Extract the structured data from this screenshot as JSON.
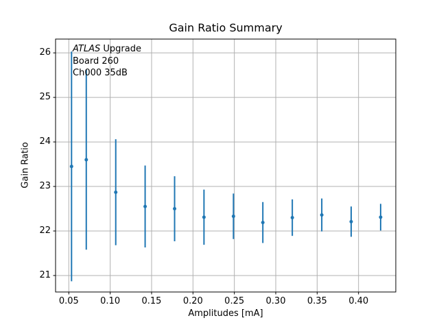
{
  "colors": {
    "series": "#1f77b4",
    "grid": "#b0b0b0",
    "axis": "#000000",
    "text": "#000000",
    "background": "#ffffff"
  },
  "chart_data": {
    "type": "errorbar-scatter",
    "title": "Gain Ratio Summary",
    "xlabel": "Amplitudes [mA]",
    "ylabel": "Gain Ratio",
    "x": [
      0.0533,
      0.0711,
      0.1067,
      0.1422,
      0.1778,
      0.2133,
      0.2489,
      0.2844,
      0.32,
      0.3556,
      0.3911,
      0.4267
    ],
    "y": [
      23.45,
      23.6,
      22.87,
      22.55,
      22.5,
      22.31,
      22.33,
      22.19,
      22.3,
      22.36,
      22.21,
      22.31
    ],
    "yerr": [
      2.58,
      2.02,
      1.19,
      0.92,
      0.73,
      0.62,
      0.51,
      0.46,
      0.41,
      0.37,
      0.34,
      0.3
    ],
    "xlim": [
      0.034,
      0.445
    ],
    "ylim": [
      20.63,
      26.31
    ],
    "xticks": [
      0.05,
      0.1,
      0.15,
      0.2,
      0.25,
      0.3,
      0.35,
      0.4
    ],
    "xtick_labels": [
      "0.05",
      "0.10",
      "0.15",
      "0.20",
      "0.25",
      "0.30",
      "0.35",
      "0.40"
    ],
    "yticks": [
      21,
      22,
      23,
      24,
      25,
      26
    ],
    "ytick_labels": [
      "21",
      "22",
      "23",
      "24",
      "25",
      "26"
    ],
    "grid": true,
    "legend": null,
    "annotation": {
      "italic": "ATLAS",
      "line1_rest": " Upgrade",
      "lines": [
        "Board 260",
        "Ch000 35dB"
      ]
    }
  }
}
